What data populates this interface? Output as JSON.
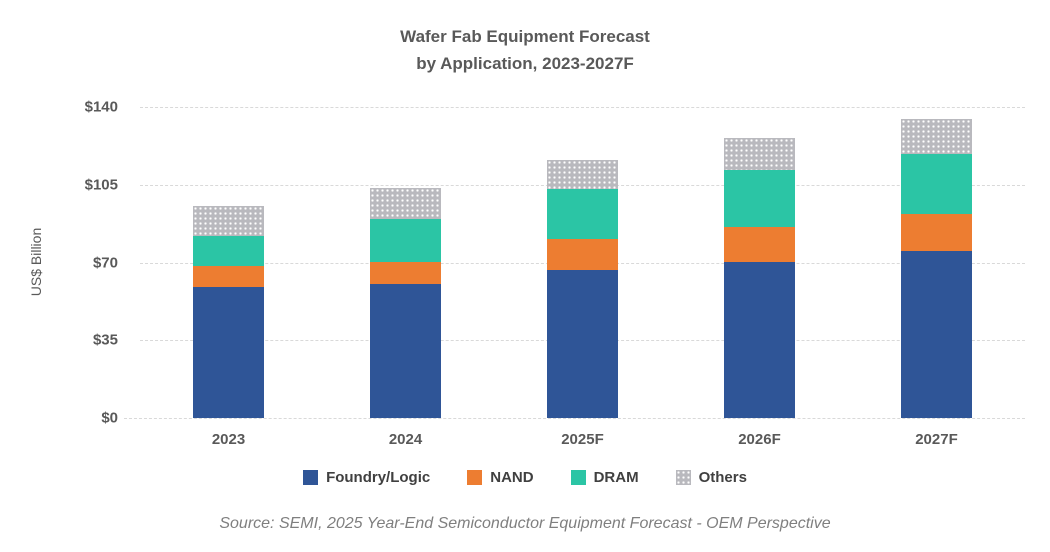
{
  "title": {
    "line1": "Wafer Fab Equipment Forecast",
    "line2": "by Application, 2023-2027F"
  },
  "source": "Source: SEMI, 2025 Year-End Semiconductor Equipment Forecast - OEM Perspective",
  "chart_data": {
    "type": "bar",
    "stacked": true,
    "title": "Wafer Fab Equipment Forecast by Application, 2023-2027F",
    "ylabel": "US$ Billion",
    "xlabel": "",
    "ylim": [
      0,
      140
    ],
    "yticks": [
      0,
      35,
      70,
      105,
      140
    ],
    "ytick_labels": [
      "$0",
      "$35",
      "$70",
      "$105",
      "$140"
    ],
    "categories": [
      "2023",
      "2024",
      "2025F",
      "2026F",
      "2027F"
    ],
    "series": [
      {
        "name": "Foundry/Logic",
        "color": "#2F5597",
        "pattern": "solid",
        "values": [
          59,
          60.5,
          66.5,
          70,
          75
        ]
      },
      {
        "name": "NAND",
        "color": "#ED7D31",
        "pattern": "solid",
        "values": [
          9.5,
          9.5,
          14,
          16,
          17
        ]
      },
      {
        "name": "DRAM",
        "color": "#2BC5A5",
        "pattern": "solid",
        "values": [
          13.5,
          19.5,
          22.5,
          25.5,
          27
        ]
      },
      {
        "name": "Others",
        "color": "#B9B9BE",
        "pattern": "dots",
        "values": [
          13.5,
          14,
          13,
          14.5,
          15.5
        ]
      }
    ],
    "totals": [
      95.5,
      103.5,
      116,
      126,
      134.5
    ],
    "grid": "horizontal-dashed",
    "legend_position": "bottom",
    "gridline_color": "#D9D9D9",
    "text_color": "#595959"
  }
}
